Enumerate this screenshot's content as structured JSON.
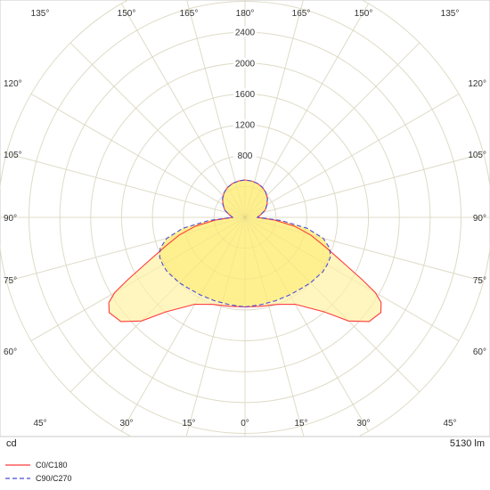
{
  "chart_data": {
    "type": "polar",
    "radial_unit": "cd",
    "luminous_flux": "5130 lm",
    "radial_ticks": [
      800,
      1200,
      1600,
      2000,
      2400
    ],
    "angle_labels_bottom": [
      "45°",
      "30°",
      "15°",
      "0°",
      "15°",
      "30°",
      "45°"
    ],
    "angle_labels_top": [
      "135°",
      "150°",
      "165°",
      "180°",
      "165°",
      "150°",
      "135°"
    ],
    "angle_labels_side": [
      "120°",
      "105°",
      "90°",
      "75°",
      "60°"
    ],
    "colors": {
      "c0": "#ff3b3b",
      "c90": "#4b4bd8",
      "fill_outer": "#fff5bf",
      "fill_inner": "#fff08f",
      "grid": "#e2e2e2"
    },
    "series": [
      {
        "name": "C0/C180",
        "style": "solid",
        "angles_deg": [
          0,
          10,
          20,
          30,
          40,
          45,
          50,
          55,
          58,
          60,
          62,
          65,
          70,
          75,
          80,
          85,
          90,
          100,
          110,
          120,
          130,
          140,
          150,
          160,
          170,
          180
        ],
        "values_cd": [
          1160,
          1170,
          1200,
          1300,
          1600,
          1900,
          2100,
          2150,
          2080,
          1950,
          1720,
          1420,
          1100,
          880,
          650,
          380,
          160,
          210,
          280,
          330,
          380,
          420,
          450,
          470,
          480,
          485
        ]
      },
      {
        "name": "C90/C270",
        "style": "dashed",
        "angles_deg": [
          0,
          10,
          20,
          30,
          40,
          45,
          50,
          55,
          60,
          65,
          70,
          75,
          80,
          85,
          90,
          100,
          110,
          120,
          130,
          140,
          150,
          160,
          170,
          180
        ],
        "values_cd": [
          1160,
          1150,
          1150,
          1160,
          1180,
          1200,
          1210,
          1230,
          1230,
          1220,
          1170,
          1050,
          820,
          470,
          160,
          210,
          280,
          330,
          380,
          420,
          450,
          470,
          480,
          485
        ]
      }
    ]
  }
}
